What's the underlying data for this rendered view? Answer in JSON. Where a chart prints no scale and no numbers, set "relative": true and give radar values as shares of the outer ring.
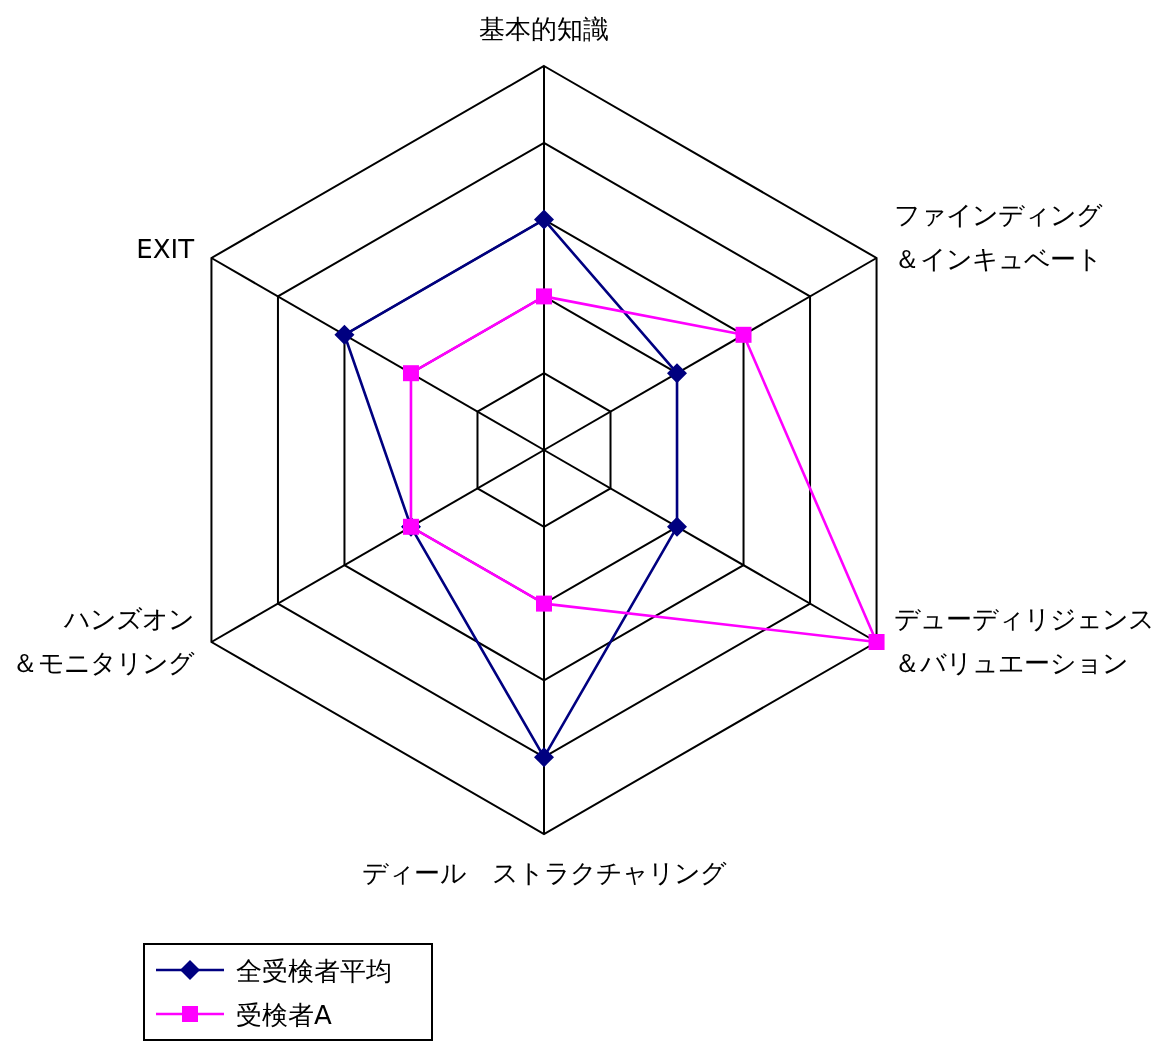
{
  "chart_data": {
    "type": "radar",
    "relative": true,
    "grid": true,
    "legend": "bottom left",
    "categories": [
      "基本的知識",
      "ファインディング＆インキュベート",
      "デューディリジェンス＆バリュエーション",
      "ディール　ストラクチャリング",
      "ハンズオン＆モニタリング",
      "EXIT"
    ],
    "series": [
      {
        "name": "全受検者平均",
        "color": "#000080",
        "marker": "diamond",
        "values": [
          0.6,
          0.4,
          0.4,
          0.8,
          0.4,
          0.6
        ]
      },
      {
        "name": "受検者A",
        "color": "#ff00ff",
        "marker": "square",
        "values": [
          0.4,
          0.6,
          1.0,
          0.4,
          0.4,
          0.4
        ]
      }
    ]
  }
}
